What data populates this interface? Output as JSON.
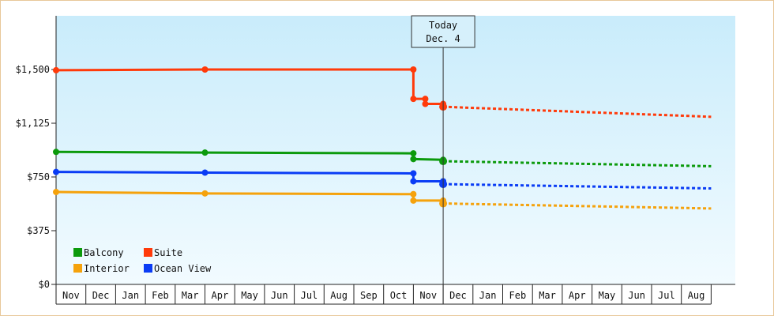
{
  "chart_data": {
    "type": "line",
    "title": "",
    "xlabel": "",
    "ylabel": "",
    "ylim": [
      0,
      1875
    ],
    "y_ticks": [
      {
        "value": 0,
        "label": "$0"
      },
      {
        "value": 375,
        "label": "$375"
      },
      {
        "value": 750,
        "label": "$750"
      },
      {
        "value": 1125,
        "label": "$1,125"
      },
      {
        "value": 1500,
        "label": "$1,500"
      }
    ],
    "months": [
      "Nov",
      "Dec",
      "Jan",
      "Feb",
      "Mar",
      "Apr",
      "May",
      "Jun",
      "Jul",
      "Aug",
      "Sep",
      "Oct",
      "Nov",
      "Dec",
      "Jan",
      "Feb",
      "Mar",
      "Apr",
      "May",
      "Jun",
      "Jul",
      "Aug"
    ],
    "today": {
      "line1": "Today",
      "line2": "Dec. 4",
      "month_pos": 13.0
    },
    "x_max_month_pos": 22.0,
    "legend_placement": "bottom-left",
    "series": [
      {
        "name": "Balcony",
        "color": "#0c9a0c",
        "points": [
          [
            0.0,
            925
          ],
          [
            5.0,
            920
          ],
          [
            12.0,
            915
          ],
          [
            12.0,
            875
          ],
          [
            13.0,
            870
          ],
          [
            13.0,
            860
          ]
        ],
        "forecast": [
          [
            13.0,
            860
          ],
          [
            22.0,
            825
          ]
        ]
      },
      {
        "name": "Suite",
        "color": "#ff3a0a",
        "points": [
          [
            0.0,
            1495
          ],
          [
            5.0,
            1500
          ],
          [
            12.0,
            1500
          ],
          [
            12.0,
            1295
          ],
          [
            12.4,
            1295
          ],
          [
            12.4,
            1260
          ],
          [
            13.0,
            1260
          ],
          [
            13.0,
            1240
          ]
        ],
        "forecast": [
          [
            13.0,
            1240
          ],
          [
            22.0,
            1170
          ]
        ]
      },
      {
        "name": "Interior",
        "color": "#f5a20c",
        "points": [
          [
            0.0,
            645
          ],
          [
            5.0,
            635
          ],
          [
            12.0,
            630
          ],
          [
            12.0,
            585
          ],
          [
            13.0,
            585
          ],
          [
            13.0,
            565
          ]
        ],
        "forecast": [
          [
            13.0,
            565
          ],
          [
            22.0,
            530
          ]
        ]
      },
      {
        "name": "Ocean View",
        "color": "#0a3cf5",
        "points": [
          [
            0.0,
            785
          ],
          [
            5.0,
            780
          ],
          [
            12.0,
            775
          ],
          [
            12.0,
            720
          ],
          [
            13.0,
            720
          ],
          [
            13.0,
            700
          ]
        ],
        "forecast": [
          [
            13.0,
            700
          ],
          [
            22.0,
            670
          ]
        ]
      }
    ],
    "legend": [
      {
        "name": "Balcony",
        "color": "#0c9a0c"
      },
      {
        "name": "Suite",
        "color": "#ff3a0a"
      },
      {
        "name": "Interior",
        "color": "#f5a20c"
      },
      {
        "name": "Ocean View",
        "color": "#0a3cf5"
      }
    ]
  }
}
